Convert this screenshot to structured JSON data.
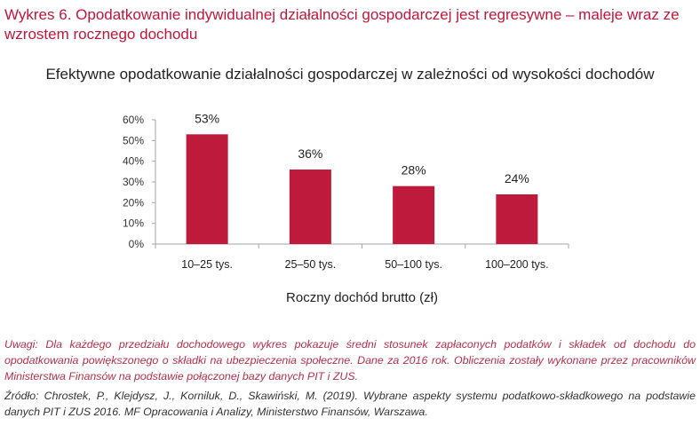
{
  "figure": {
    "title": "Wykres 6. Opodatkowanie indywidualnej działalności gospodarczej jest regresywne – maleje wraz ze wzrostem rocznego dochodu"
  },
  "colors": {
    "accent": "#c0163a",
    "bar": "#be1a3c",
    "note": "#b5304a"
  },
  "chart_data": {
    "type": "bar",
    "title": "Efektywne opodatkowanie działalności gospodarczej w zależności od wysokości dochodów",
    "xlabel": "Roczny dochód brutto (zł)",
    "ylabel": "",
    "categories": [
      "10–25 tys.",
      "25–50 tys.",
      "50–100 tys.",
      "100–200 tys."
    ],
    "values": [
      53,
      36,
      28,
      24
    ],
    "data_labels": [
      "53%",
      "36%",
      "28%",
      "24%"
    ],
    "ylim": [
      0,
      60
    ],
    "yticks": [
      0,
      10,
      20,
      30,
      40,
      50,
      60
    ],
    "ytick_labels": [
      "0%",
      "10%",
      "20%",
      "30%",
      "40%",
      "50%",
      "60%"
    ],
    "grid": false,
    "legend": "none"
  },
  "notes": {
    "remarks": "Uwagi: Dla każdego przedziału dochodowego wykres pokazuje średni stosunek zapłaconych podatków i składek od dochodu do opodatkowania powiększonego o składki na ubezpieczenia społeczne. Dane za 2016 rok. Obliczenia zostały wykonane przez pracowników Ministerstwa Finansów na podstawie połączonej bazy danych PIT i ZUS.",
    "source": "Źródło: Chrostek, P., Klejdysz, J., Korniluk, D., Skawiński, M. (2019). Wybrane aspekty systemu podatkowo-składkowego na podstawie danych PIT i ZUS 2016. MF Opracowania i Analizy, Ministerstwo Finansów, Warszawa."
  }
}
